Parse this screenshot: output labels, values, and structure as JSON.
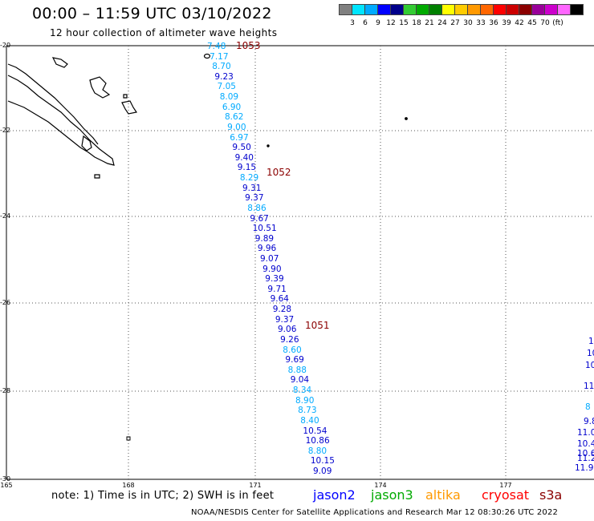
{
  "title": "00:00 – 11:59 UTC 03/10/2022",
  "subtitle": "12 hour collection of altimeter wave heights",
  "legend": {
    "colors": [
      "#808080",
      "#00e5ff",
      "#00aaff",
      "#0000ff",
      "#00008b",
      "#33cc33",
      "#00aa00",
      "#008000",
      "#ffff00",
      "#ffcc00",
      "#ff9900",
      "#ff6600",
      "#ff0000",
      "#cc0000",
      "#8b0000",
      "#990099",
      "#cc00cc",
      "#ff66ff",
      "#000000"
    ],
    "labels": [
      "3",
      "6",
      "9",
      "12",
      "15",
      "18",
      "21",
      "24",
      "27",
      "30",
      "33",
      "36",
      "39",
      "42",
      "45",
      "70",
      "(ft)"
    ]
  },
  "latitudes": [
    "-20",
    "-22",
    "-24",
    "-26",
    "-28",
    "-30"
  ],
  "longitudes": [
    "165",
    "168",
    "171",
    "174",
    "177"
  ],
  "track_values": [
    {
      "v": "7.48",
      "c": "#00aaff"
    },
    {
      "v": "7.17",
      "c": "#00aaff"
    },
    {
      "v": "8.70",
      "c": "#00aaff"
    },
    {
      "v": "9.23",
      "c": "#0000cd"
    },
    {
      "v": "7.05",
      "c": "#00aaff"
    },
    {
      "v": "8.09",
      "c": "#00aaff"
    },
    {
      "v": "6.90",
      "c": "#00aaff"
    },
    {
      "v": "8.62",
      "c": "#00aaff"
    },
    {
      "v": "9.00",
      "c": "#00aaff"
    },
    {
      "v": "6.97",
      "c": "#00aaff"
    },
    {
      "v": "9.50",
      "c": "#0000cd"
    },
    {
      "v": "9.40",
      "c": "#0000cd"
    },
    {
      "v": "9.15",
      "c": "#0000cd"
    },
    {
      "v": "8.29",
      "c": "#00aaff"
    },
    {
      "v": "9.31",
      "c": "#0000cd"
    },
    {
      "v": "9.37",
      "c": "#0000cd"
    },
    {
      "v": "8.86",
      "c": "#00aaff"
    },
    {
      "v": "9.67",
      "c": "#0000cd"
    },
    {
      "v": "10.51",
      "c": "#0000cd"
    },
    {
      "v": "9.89",
      "c": "#0000cd"
    },
    {
      "v": "9.96",
      "c": "#0000cd"
    },
    {
      "v": "9.07",
      "c": "#0000cd"
    },
    {
      "v": "9.90",
      "c": "#0000cd"
    },
    {
      "v": "9.39",
      "c": "#0000cd"
    },
    {
      "v": "9.71",
      "c": "#0000cd"
    },
    {
      "v": "9.64",
      "c": "#0000cd"
    },
    {
      "v": "9.28",
      "c": "#0000cd"
    },
    {
      "v": "9.37",
      "c": "#0000cd"
    },
    {
      "v": "9.06",
      "c": "#0000cd"
    },
    {
      "v": "9.26",
      "c": "#0000cd"
    },
    {
      "v": "8.60",
      "c": "#00aaff"
    },
    {
      "v": "9.69",
      "c": "#0000cd"
    },
    {
      "v": "8.88",
      "c": "#00aaff"
    },
    {
      "v": "9.04",
      "c": "#0000cd"
    },
    {
      "v": "8.34",
      "c": "#00aaff"
    },
    {
      "v": "8.90",
      "c": "#00aaff"
    },
    {
      "v": "8.73",
      "c": "#00aaff"
    },
    {
      "v": "8.40",
      "c": "#00aaff"
    },
    {
      "v": "10.54",
      "c": "#0000cd"
    },
    {
      "v": "10.86",
      "c": "#0000cd"
    },
    {
      "v": "8.80",
      "c": "#00aaff"
    },
    {
      "v": "10.15",
      "c": "#0000cd"
    },
    {
      "v": "9.09",
      "c": "#0000cd"
    }
  ],
  "edge_values": [
    {
      "v": "1",
      "c": "#0000cd"
    },
    {
      "v": "10",
      "c": "#0000cd"
    },
    {
      "v": "10",
      "c": "#0000cd"
    },
    {
      "v": "11",
      "c": "#0000cd"
    },
    {
      "v": "8",
      "c": "#00aaff"
    },
    {
      "v": "9.8",
      "c": "#0000cd"
    },
    {
      "v": "11.0",
      "c": "#0000cd"
    },
    {
      "v": "10.4",
      "c": "#0000cd"
    },
    {
      "v": "10.6",
      "c": "#0000cd"
    },
    {
      "v": "11.2",
      "c": "#0000cd"
    },
    {
      "v": "11.9",
      "c": "#0000cd"
    }
  ],
  "cyclones": [
    "1053",
    "1052",
    "1051"
  ],
  "note": "note: 1) Time is in UTC; 2) SWH is in feet",
  "satellites": [
    {
      "name": "jason2",
      "color": "#0000ff"
    },
    {
      "name": "jason3",
      "color": "#00aa00"
    },
    {
      "name": "altika",
      "color": "#ff9900"
    },
    {
      "name": "cryosat",
      "color": "#ff0000"
    },
    {
      "name": "s3a",
      "color": "#8b0000"
    }
  ],
  "credit": "NOAA/NESDIS Center for Satellite Applications and Research   Mar 12 08:30:26 UTC 2022"
}
